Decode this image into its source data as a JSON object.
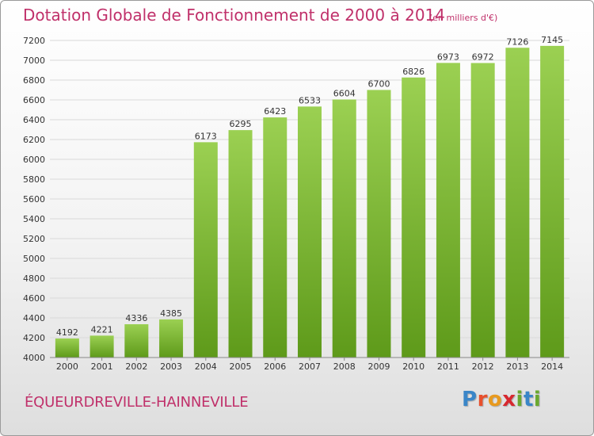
{
  "header": {
    "title": "Dotation Globale de Fonctionnement de 2000 à 2014",
    "unit": "(en milliers d'€)"
  },
  "footer": {
    "commune": "ÉQUEURDREVILLE-HAINNEVILLE",
    "logo_letters": [
      "P",
      "r",
      "o",
      "x",
      "i",
      "t",
      "i"
    ],
    "logo_colors": [
      "#3a86c8",
      "#e8502d",
      "#e89a1f",
      "#d7282f",
      "#6aa82f",
      "#3a86c8",
      "#6aa82f"
    ]
  },
  "colors": {
    "bar_top": "#9bd052",
    "bar_bottom": "#5e9a1a",
    "grid": "#d9d9d9",
    "title": "#c0306a"
  },
  "chart_data": {
    "type": "bar",
    "categories": [
      "2000",
      "2001",
      "2002",
      "2003",
      "2004",
      "2005",
      "2006",
      "2007",
      "2008",
      "2009",
      "2010",
      "2011",
      "2012",
      "2013",
      "2014"
    ],
    "values": [
      4192,
      4221,
      4336,
      4385,
      6173,
      6295,
      6423,
      6533,
      6604,
      6700,
      6826,
      6973,
      6972,
      7126,
      7145
    ],
    "value_labels": [
      "4192",
      "4221",
      "4336",
      "4385",
      "6173",
      "6295",
      "6423",
      "6533",
      "6604",
      "6700",
      "6826",
      "6973",
      "6972",
      "7126",
      "7145"
    ],
    "ylim": [
      4000,
      7200
    ],
    "yticks": [
      4000,
      4200,
      4400,
      4600,
      4800,
      5000,
      5200,
      5400,
      5600,
      5800,
      6000,
      6200,
      6400,
      6600,
      6800,
      7000,
      7200
    ],
    "ytick_labels": [
      "4000",
      "4200",
      "4400",
      "4600",
      "4800",
      "5000",
      "5200",
      "5400",
      "5600",
      "5800",
      "6000",
      "6200",
      "6400",
      "6600",
      "6800",
      "7000",
      "7200"
    ],
    "grid": true,
    "legend": "none"
  }
}
